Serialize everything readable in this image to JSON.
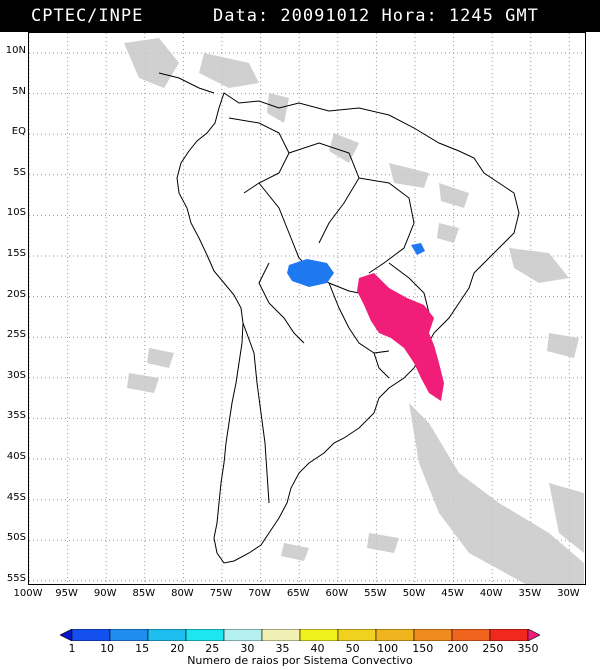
{
  "header": {
    "source": "CPTEC/INPE",
    "datetime_text": "Data: 20091012 Hora: 1245 GMT"
  },
  "map": {
    "lat_labels": [
      "10N",
      "5N",
      "EQ",
      "5S",
      "10S",
      "15S",
      "20S",
      "25S",
      "30S",
      "35S",
      "40S",
      "45S",
      "50S",
      "55S"
    ],
    "lon_labels": [
      "100W",
      "95W",
      "90W",
      "85W",
      "80W",
      "75W",
      "70W",
      "65W",
      "60W",
      "55W",
      "50W",
      "45W",
      "40W",
      "35W",
      "30W"
    ],
    "gridlines": "dotted",
    "colors": {
      "cloud": "#c8c8c8",
      "coast": "#000000",
      "storm_blue": "#1e78f0",
      "storm_pink": "#f01e78"
    }
  },
  "legend": {
    "ticks": [
      "1",
      "10",
      "15",
      "20",
      "25",
      "30",
      "35",
      "40",
      "50",
      "100",
      "150",
      "200",
      "250",
      "350"
    ],
    "colors": [
      "#0a14c8",
      "#1450f0",
      "#1e8cf0",
      "#1ebef0",
      "#1ee6f0",
      "#b4f0f0",
      "#f0f0b4",
      "#f0f01e",
      "#f0d21e",
      "#f0b41e",
      "#f08c1e",
      "#f0641e",
      "#f0281e",
      "#f01e78"
    ],
    "title": "Numero de raios por Sistema Convectivo"
  }
}
